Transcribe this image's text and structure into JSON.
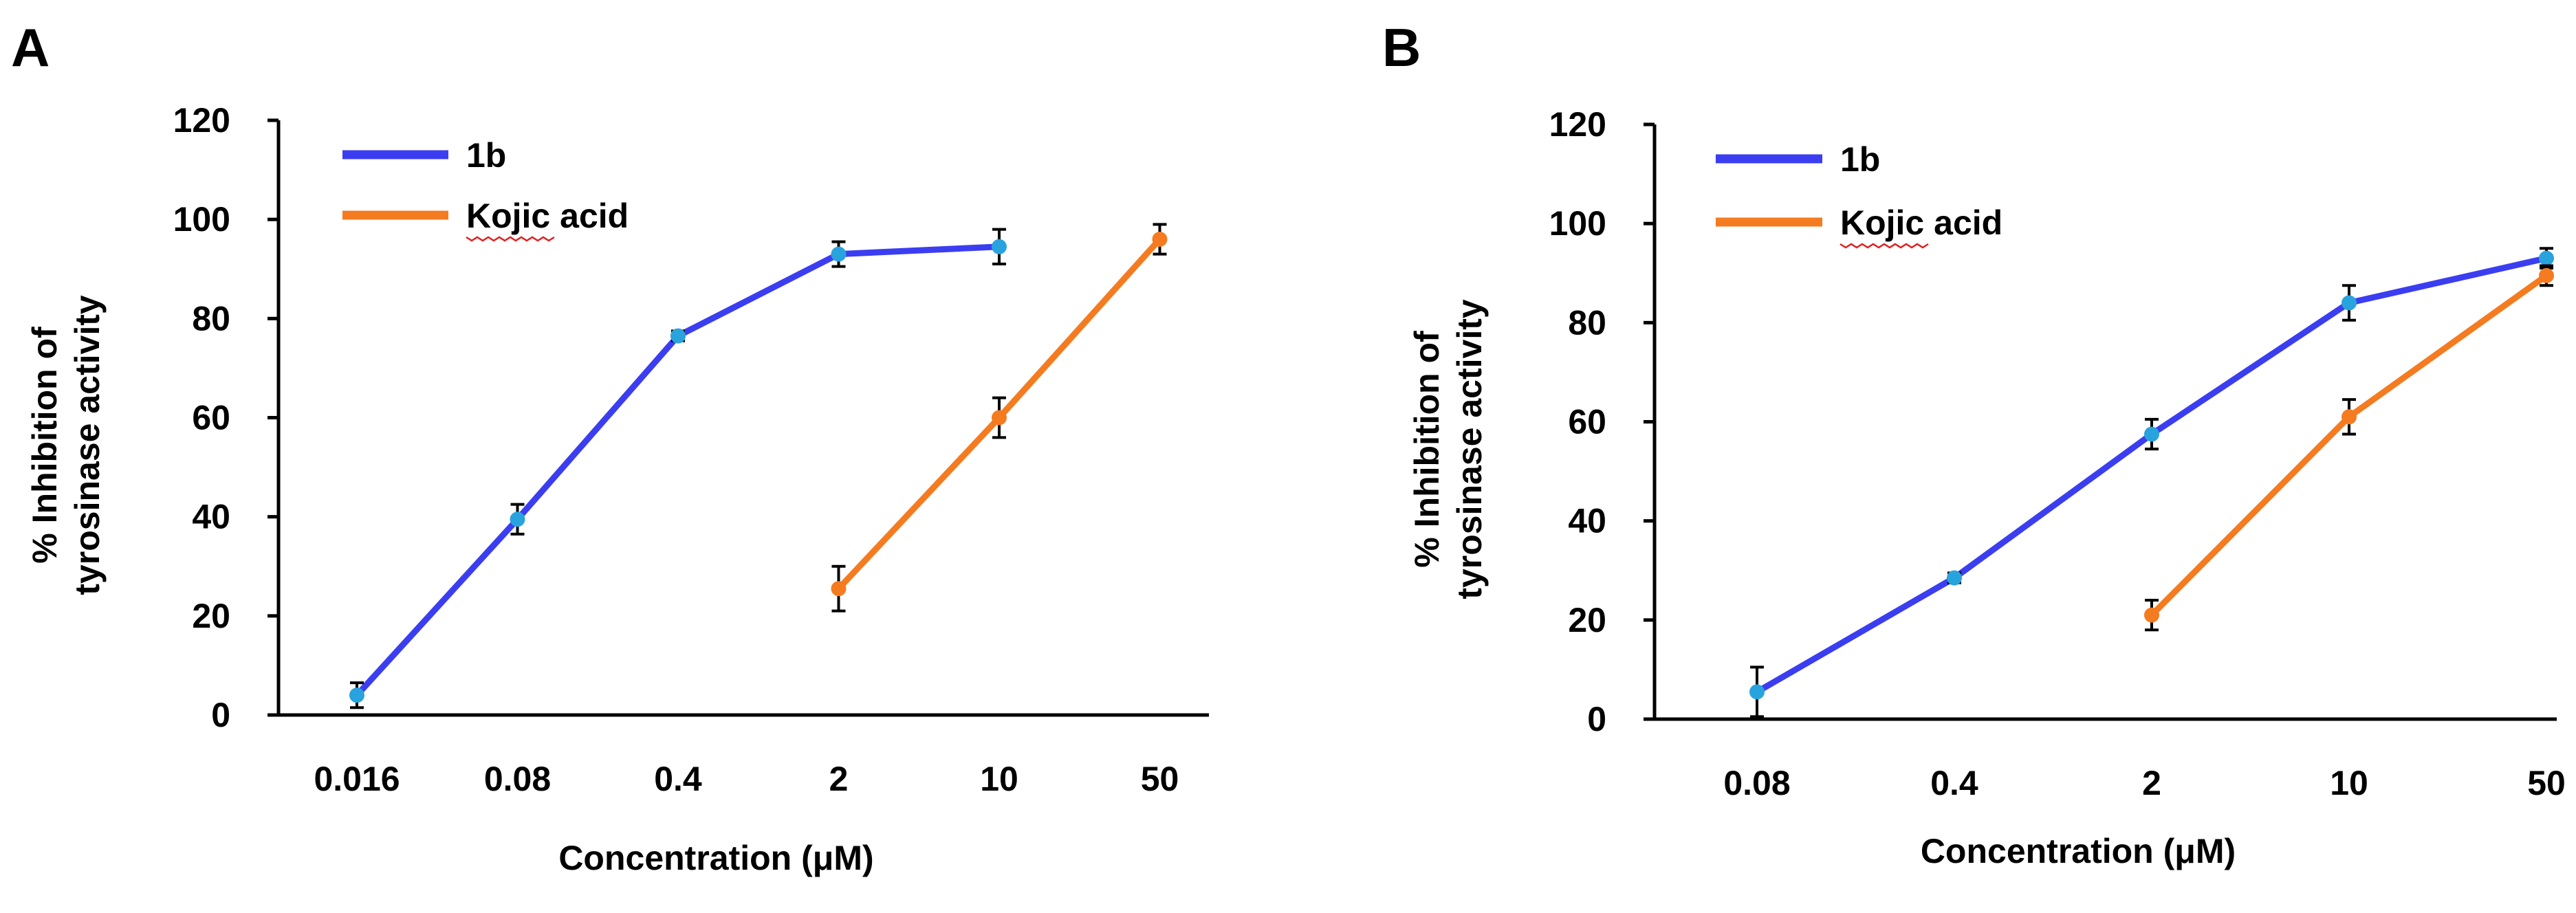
{
  "chart_data": [
    {
      "type": "line",
      "panel": "A",
      "categories": [
        "0.016",
        "0.08",
        "0.4",
        "2",
        "10",
        "50"
      ],
      "xlabel": "Concentration (μM)",
      "ylabel": [
        "% Inhibition of",
        "tyrosinase activity"
      ],
      "ylim": [
        0,
        120
      ],
      "yticks": [
        "0",
        "20",
        "40",
        "60",
        "80",
        "100",
        "120"
      ],
      "legend_position": "top-left",
      "series": [
        {
          "name": "1b",
          "color": "#3b3ef0",
          "marker_color": "#29a3dd",
          "values": [
            4,
            39.5,
            76.5,
            93,
            94.5,
            null
          ],
          "errors": [
            2.5,
            3,
            1,
            2.5,
            3.5,
            null
          ]
        },
        {
          "name": "Kojic acid",
          "color": "#f57b20",
          "marker_color": "#f57b20",
          "values": [
            null,
            null,
            null,
            25.5,
            60,
            96
          ],
          "errors": [
            null,
            null,
            null,
            4.5,
            4,
            3
          ]
        }
      ]
    },
    {
      "type": "line",
      "panel": "B",
      "categories": [
        "0.08",
        "0.4",
        "2",
        "10",
        "50"
      ],
      "xlabel": "Concentration (μM)",
      "ylabel": [
        "% Inhibition of",
        "tyrosinase activity"
      ],
      "ylim": [
        0,
        120
      ],
      "yticks": [
        "0",
        "20",
        "40",
        "60",
        "80",
        "100",
        "120"
      ],
      "legend_position": "top-left",
      "series": [
        {
          "name": "1b",
          "color": "#3b3ef0",
          "marker_color": "#29a3dd",
          "values": [
            5.5,
            28.5,
            57.5,
            84,
            93
          ],
          "errors": [
            5,
            1,
            3,
            3.5,
            2
          ]
        },
        {
          "name": "Kojic acid",
          "color": "#f57b20",
          "marker_color": "#f57b20",
          "values": [
            null,
            null,
            21,
            61,
            89.5
          ],
          "errors": [
            null,
            null,
            3,
            3.5,
            2
          ]
        }
      ]
    }
  ]
}
